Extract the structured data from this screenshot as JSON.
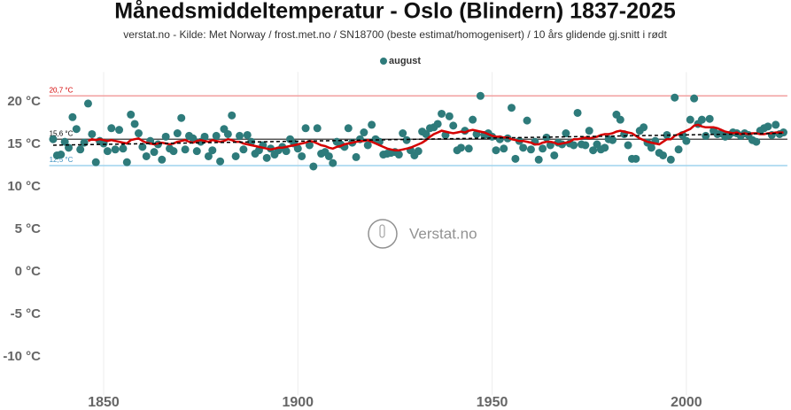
{
  "chart_data": {
    "type": "scatter",
    "title": "Månedsmiddeltemperatur - Oslo (Blindern) 1837-2025",
    "subtitle": "verstat.no - Kilde: Met Norway / frost.met.no / SN18700 (beste estimat/homogenisert) / 10 års glidende gj.snitt i rødt",
    "watermark": "Verstat.no",
    "x": [
      1837,
      1838,
      1839,
      1840,
      1841,
      1842,
      1843,
      1844,
      1845,
      1846,
      1847,
      1848,
      1849,
      1850,
      1851,
      1852,
      1853,
      1854,
      1855,
      1856,
      1857,
      1858,
      1859,
      1860,
      1861,
      1862,
      1863,
      1864,
      1865,
      1866,
      1867,
      1868,
      1869,
      1870,
      1871,
      1872,
      1873,
      1874,
      1875,
      1876,
      1877,
      1878,
      1879,
      1880,
      1881,
      1882,
      1883,
      1884,
      1885,
      1886,
      1887,
      1888,
      1889,
      1890,
      1891,
      1892,
      1893,
      1894,
      1895,
      1896,
      1897,
      1898,
      1899,
      1900,
      1901,
      1902,
      1903,
      1904,
      1905,
      1906,
      1907,
      1908,
      1909,
      1910,
      1911,
      1912,
      1913,
      1914,
      1915,
      1916,
      1917,
      1918,
      1919,
      1920,
      1921,
      1922,
      1923,
      1924,
      1925,
      1926,
      1927,
      1928,
      1929,
      1930,
      1931,
      1932,
      1933,
      1934,
      1935,
      1936,
      1937,
      1938,
      1939,
      1940,
      1941,
      1942,
      1943,
      1944,
      1945,
      1946,
      1947,
      1948,
      1949,
      1950,
      1951,
      1952,
      1953,
      1954,
      1955,
      1956,
      1957,
      1958,
      1959,
      1960,
      1961,
      1962,
      1963,
      1964,
      1965,
      1966,
      1967,
      1968,
      1969,
      1970,
      1971,
      1972,
      1973,
      1974,
      1975,
      1976,
      1977,
      1978,
      1979,
      1980,
      1981,
      1982,
      1983,
      1984,
      1985,
      1986,
      1987,
      1988,
      1989,
      1990,
      1991,
      1992,
      1993,
      1994,
      1995,
      1996,
      1997,
      1998,
      1999,
      2000,
      2001,
      2002,
      2003,
      2004,
      2005,
      2006,
      2007,
      2008,
      2009,
      2010,
      2011,
      2012,
      2013,
      2014,
      2015,
      2016,
      2017,
      2018,
      2019,
      2020,
      2021,
      2022,
      2023,
      2024,
      2025
    ],
    "series": [
      {
        "name": "august",
        "color": "#2e7b7b",
        "values": [
          15.6,
          13.7,
          13.8,
          15.3,
          14.6,
          18.2,
          16.8,
          14.4,
          15.2,
          19.8,
          16.2,
          12.9,
          15.4,
          15.1,
          14.2,
          16.9,
          14.4,
          16.7,
          14.5,
          12.9,
          18.5,
          17.4,
          16.3,
          14.7,
          13.6,
          15.4,
          14.1,
          15.0,
          13.2,
          15.9,
          14.5,
          14.2,
          16.3,
          18.1,
          14.4,
          16.0,
          15.7,
          14.2,
          15.3,
          15.9,
          13.6,
          14.3,
          16.0,
          13.0,
          16.8,
          16.2,
          18.4,
          13.6,
          16.0,
          14.4,
          16.1,
          15.3,
          13.9,
          14.3,
          14.9,
          13.4,
          14.5,
          13.8,
          14.3,
          14.7,
          14.2,
          15.6,
          15.1,
          14.5,
          13.6,
          16.9,
          14.9,
          12.4,
          16.9,
          13.9,
          14.1,
          13.6,
          12.8,
          15.3,
          15.0,
          14.7,
          16.9,
          15.2,
          13.5,
          15.6,
          16.4,
          14.9,
          17.3,
          15.6,
          15.3,
          13.8,
          13.9,
          14.0,
          14.1,
          13.8,
          16.3,
          15.5,
          14.3,
          13.7,
          14.2,
          16.5,
          16.2,
          16.9,
          17.0,
          17.4,
          18.6,
          16.1,
          18.3,
          17.2,
          14.3,
          14.6,
          16.6,
          14.5,
          17.9,
          16.2,
          20.7,
          16.1,
          16.3,
          15.9,
          14.3,
          15.6,
          14.5,
          15.7,
          19.3,
          13.3,
          15.4,
          14.6,
          17.8,
          14.4,
          15.3,
          13.2,
          14.5,
          15.8,
          14.9,
          13.7,
          15.2,
          15.0,
          16.3,
          15.1,
          14.9,
          18.7,
          15.0,
          14.9,
          16.6,
          14.3,
          15.0,
          14.4,
          14.6,
          15.6,
          15.5,
          18.5,
          17.9,
          16.2,
          14.9,
          13.3,
          13.3,
          16.6,
          17.0,
          15.2,
          14.6,
          15.4,
          14.0,
          13.7,
          16.1,
          13.2,
          20.5,
          14.4,
          16.1,
          15.4,
          17.9,
          20.4,
          17.4,
          17.9,
          16.0,
          18.0,
          16.6,
          16.2,
          16.3,
          15.9,
          16.1,
          16.4,
          16.3,
          16.0,
          16.3,
          16.1,
          15.5,
          15.3,
          16.6,
          16.9,
          17.1,
          16.1,
          17.3,
          16.2,
          16.4
        ]
      }
    ],
    "moving_average": {
      "color": "#d40000",
      "values": [
        null,
        null,
        null,
        null,
        null,
        null,
        null,
        null,
        null,
        15.4,
        15.6,
        15.5,
        15.6,
        15.5,
        15.4,
        15.5,
        15.4,
        15.3,
        15.2,
        15.1,
        15.5,
        15.6,
        15.7,
        15.4,
        15.2,
        15.1,
        15.0,
        15.1,
        15.2,
        15.1,
        15.0,
        15.1,
        15.3,
        15.4,
        15.5,
        15.3,
        15.2,
        15.4,
        15.5,
        15.4,
        15.3,
        15.5,
        15.4,
        15.3,
        15.4,
        15.6,
        15.5,
        15.3,
        15.3,
        15.1,
        15.0,
        14.9,
        14.8,
        14.7,
        14.6,
        14.5,
        14.4,
        14.5,
        14.6,
        14.6,
        14.7,
        14.8,
        14.9,
        15.0,
        15.1,
        15.2,
        15.4,
        15.3,
        15.1,
        14.9,
        14.8,
        14.6,
        14.5,
        14.7,
        14.8,
        15.0,
        15.1,
        15.2,
        15.3,
        15.4,
        15.4,
        15.5,
        15.3,
        15.1,
        14.9,
        14.7,
        14.5,
        14.4,
        14.3,
        14.3,
        14.4,
        14.5,
        14.6,
        14.8,
        15.0,
        15.2,
        15.5,
        15.9,
        16.2,
        16.4,
        16.6,
        16.5,
        16.4,
        16.3,
        16.4,
        16.5,
        16.4,
        16.6,
        16.7,
        16.6,
        16.5,
        16.4,
        16.2,
        16.0,
        15.9,
        15.9,
        15.8,
        15.8,
        15.6,
        15.5,
        15.4,
        15.4,
        15.3,
        15.2,
        15.0,
        15.0,
        15.2,
        15.3,
        15.3,
        15.2,
        15.0,
        15.1,
        15.2,
        15.3,
        15.6,
        15.6,
        15.7,
        15.8,
        15.7,
        15.8,
        15.9,
        16.1,
        16.2,
        16.2,
        16.3,
        16.5,
        16.6,
        16.5,
        16.4,
        16.3,
        16.0,
        15.7,
        15.5,
        15.3,
        15.2,
        15.1,
        15.0,
        15.3,
        15.6,
        15.6,
        16.0,
        16.2,
        16.4,
        16.6,
        16.8,
        17.2,
        17.3,
        17.1,
        17.0,
        17.0,
        17.0,
        16.9,
        16.7,
        16.5,
        16.4,
        16.3,
        16.4,
        16.2,
        16.3,
        16.2,
        16.3,
        16.3,
        16.2,
        16.2,
        16.3,
        16.3,
        16.4,
        16.4,
        16.4
      ]
    },
    "trend": {
      "color": "#000000",
      "x": [
        1837,
        2025
      ],
      "values": [
        14.9,
        16.3
      ]
    },
    "reference_lines": [
      {
        "value": 20.7,
        "label": "20,7 °C",
        "color": "#f2a0a0",
        "label_color": "#d40000"
      },
      {
        "value": 15.6,
        "label": "15,6 °C",
        "color": "#555555",
        "label_color": "#000000"
      },
      {
        "value": 12.5,
        "label": "12,5 °C",
        "color": "#9fd4ee",
        "label_color": "#3a8fc0"
      }
    ],
    "xlim": [
      1836,
      2026
    ],
    "xticks": [
      1850,
      1900,
      1950,
      2000
    ],
    "ylim": [
      -14.5,
      23.5
    ],
    "yticks": [
      {
        "value": -10,
        "label": "-10 °C"
      },
      {
        "value": -5,
        "label": "-5 °C"
      },
      {
        "value": 0,
        "label": "0 °C"
      },
      {
        "value": 5,
        "label": "5 °C"
      },
      {
        "value": 10,
        "label": "10 °C"
      },
      {
        "value": 15,
        "label": "15 °C"
      },
      {
        "value": 20,
        "label": "20 °C"
      }
    ],
    "grid": "x"
  }
}
